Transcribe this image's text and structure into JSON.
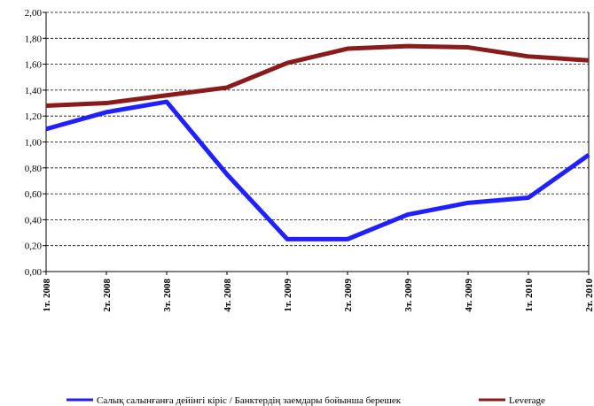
{
  "chart_data": {
    "type": "line",
    "categories": [
      "1т. 2008",
      "2т. 2008",
      "3т. 2008",
      "4т. 2008",
      "1т. 2009",
      "2т. 2009",
      "3т. 2009",
      "4т. 2009",
      "1т. 2010",
      "2т. 2010"
    ],
    "series": [
      {
        "name": "Салық салынғанға дейінгі кіріс / Банктердің заемдары бойынша берешек",
        "color": "#1f1fff",
        "values": [
          1.1,
          1.23,
          1.31,
          0.75,
          0.25,
          0.25,
          0.44,
          0.53,
          0.57,
          0.9
        ]
      },
      {
        "name": "Leverage",
        "color": "#8b1a1a",
        "values": [
          1.28,
          1.3,
          1.36,
          1.42,
          1.61,
          1.72,
          1.74,
          1.73,
          1.66,
          1.63
        ]
      }
    ],
    "ylim": [
      0,
      2
    ],
    "yticks": [
      {
        "value": 0,
        "label": "0,00"
      },
      {
        "value": 0.2,
        "label": "0,20"
      },
      {
        "value": 0.4,
        "label": "0,40"
      },
      {
        "value": 0.6,
        "label": "0,60"
      },
      {
        "value": 0.8,
        "label": "0,80"
      },
      {
        "value": 1.0,
        "label": "1,00"
      },
      {
        "value": 1.2,
        "label": "1,20"
      },
      {
        "value": 1.4,
        "label": "1,40"
      },
      {
        "value": 1.6,
        "label": "1,60"
      },
      {
        "value": 1.8,
        "label": "1,80"
      },
      {
        "value": 2.0,
        "label": "2,00"
      }
    ],
    "grid": true
  }
}
